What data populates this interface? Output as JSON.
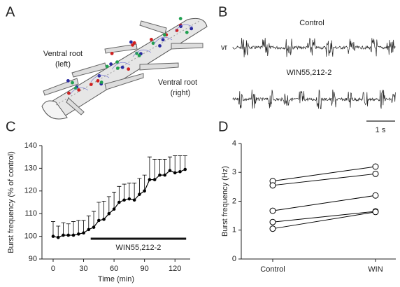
{
  "figure": {
    "panel_a": {
      "label": "A",
      "left_root": [
        "Ventral root",
        "(left)"
      ],
      "right_root": [
        "Ventral root",
        "(right)"
      ]
    },
    "panel_b": {
      "label": "B",
      "control": "Control",
      "recording": "vr",
      "drug": "WIN55,212-2",
      "scale": "1 s"
    }
  },
  "chart_data": [
    {
      "type": "line",
      "panel_label": "C",
      "xlabel": "Time (min)",
      "ylabel": "Burst frequency (% of control)",
      "x": [
        0,
        5,
        10,
        15,
        20,
        25,
        30,
        35,
        40,
        45,
        50,
        55,
        60,
        65,
        70,
        75,
        80,
        85,
        90,
        95,
        100,
        105,
        110,
        115,
        120,
        125,
        130
      ],
      "values": [
        100,
        99.5,
        100.5,
        100.5,
        100.5,
        101,
        101.5,
        103,
        104,
        107,
        107.5,
        110,
        112,
        115,
        116,
        116.5,
        116,
        118.5,
        120,
        125,
        125,
        127,
        127,
        129,
        128,
        128.5,
        129.5
      ],
      "errors": [
        6.5,
        5,
        5.5,
        5,
        6,
        6,
        5.5,
        6,
        7,
        8,
        8,
        7.5,
        7.5,
        7,
        7,
        7,
        7.5,
        7,
        7,
        10,
        9,
        7,
        7,
        6,
        7.5,
        7,
        6
      ],
      "color": "#000000",
      "xlim": [
        -11,
        135
      ],
      "xticks": [
        0,
        30,
        60,
        90,
        120
      ],
      "ylim": [
        90,
        140
      ],
      "yticks": [
        90,
        100,
        110,
        120,
        130,
        140
      ],
      "treatment": {
        "label": "WIN55,212-2",
        "start": 37,
        "end": 131
      }
    },
    {
      "type": "paired",
      "panel_label": "D",
      "ylabel": "Burst frequency (Hz)",
      "categories": [
        "Control",
        "WIN"
      ],
      "series": [
        {
          "values": [
            2.7,
            3.2
          ]
        },
        {
          "values": [
            2.55,
            2.95
          ]
        },
        {
          "values": [
            1.67,
            2.2
          ]
        },
        {
          "values": [
            1.28,
            1.65
          ]
        },
        {
          "values": [
            1.05,
            1.63
          ]
        }
      ],
      "color": "#000000",
      "ylim": [
        0,
        4
      ],
      "yticks": [
        0,
        1,
        2,
        3,
        4
      ]
    }
  ]
}
